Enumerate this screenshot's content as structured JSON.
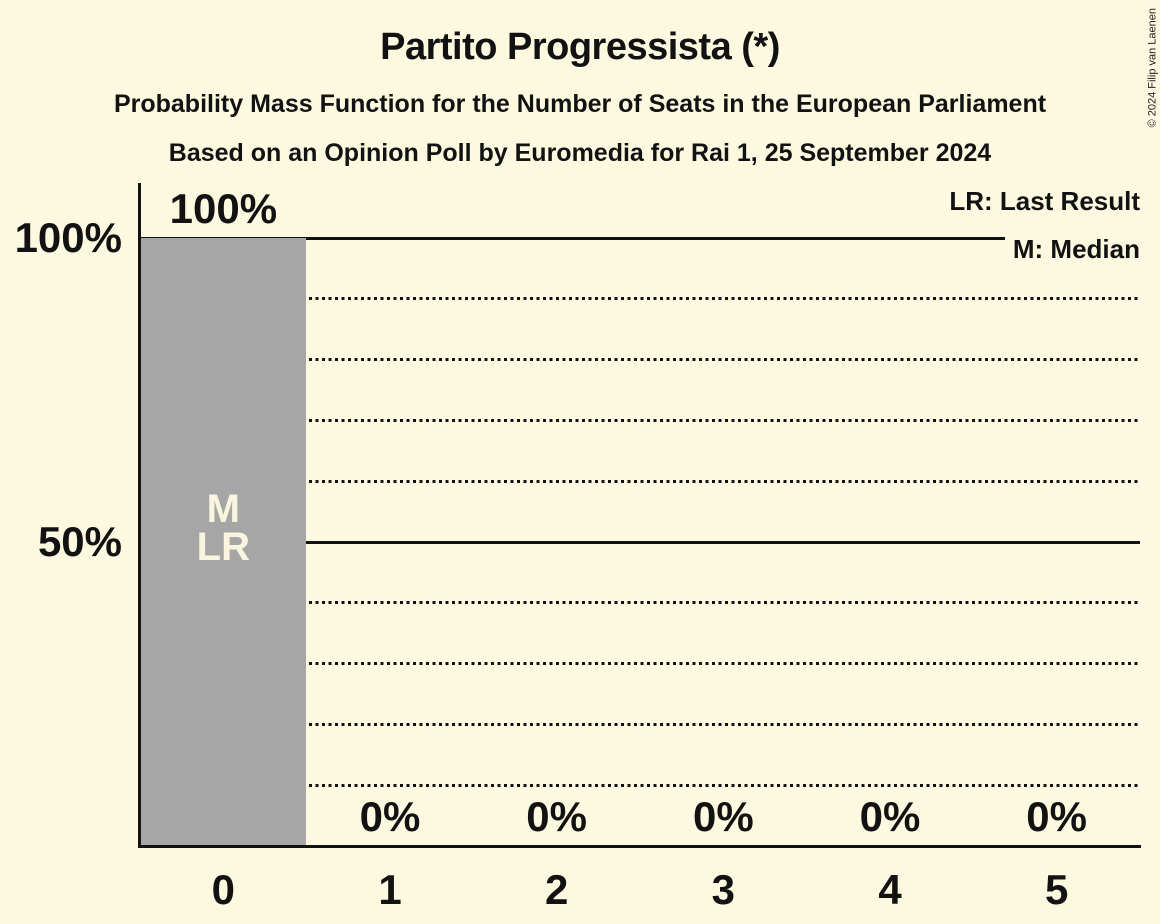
{
  "title": "Partito Progressista (*)",
  "subtitle": "Probability Mass Function for the Number of Seats in the European Parliament",
  "source_line": "Based on an Opinion Poll by Euromedia for Rai 1, 25 September 2024",
  "copyright": "© 2024 Filip van Laenen",
  "legend": {
    "last_result": "LR: Last Result",
    "median": "M: Median"
  },
  "colors": {
    "background": "#FDF9E1",
    "bar": "#A6A6A6",
    "text": "#121212",
    "bar_label_text": "#FAF5DE"
  },
  "chart_data": {
    "type": "bar",
    "title": "Partito Progressista (*)",
    "categories": [
      "0",
      "1",
      "2",
      "3",
      "4",
      "5"
    ],
    "values": [
      100,
      0,
      0,
      0,
      0,
      0
    ],
    "value_labels": [
      "100%",
      "0%",
      "0%",
      "0%",
      "0%",
      "0%"
    ],
    "bar_annotations": [
      [
        "M",
        "LR"
      ],
      [],
      [],
      [],
      [],
      []
    ],
    "xlabel": "",
    "ylabel": "",
    "ylim": [
      0,
      100
    ],
    "yticks": [
      {
        "value": 100,
        "label": "100%"
      },
      {
        "value": 50,
        "label": "50%"
      }
    ],
    "gridlines": {
      "solid": [
        50,
        100
      ],
      "dotted": [
        10,
        20,
        30,
        40,
        60,
        70,
        80,
        90
      ]
    },
    "grid": "horizontal-only",
    "legend_position": "top-right",
    "median_seats": 0,
    "last_result_seats": 0
  }
}
